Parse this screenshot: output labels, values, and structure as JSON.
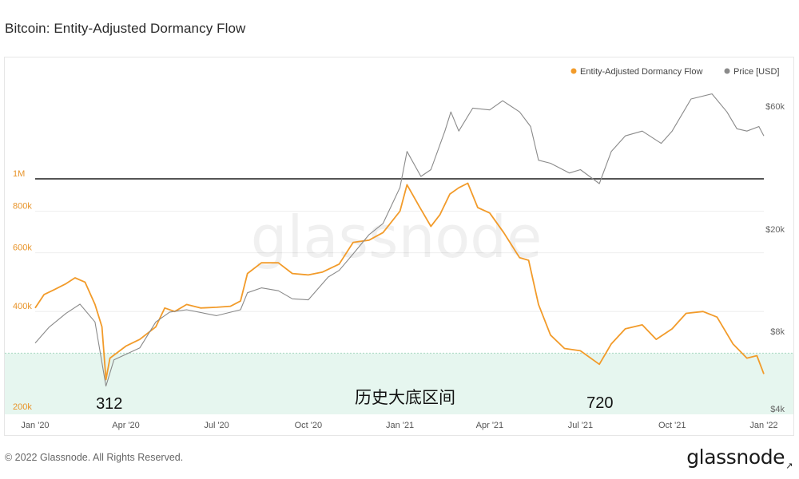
{
  "header": {
    "title": "Bitcoin: Entity-Adjusted Dormancy Flow"
  },
  "footer": {
    "copyright": "© 2022 Glassnode. All Rights Reserved.",
    "logo": "glassnode",
    "logo_arrow": "↗"
  },
  "watermark": "glassnode",
  "colors": {
    "dormancy": "#f29b2a",
    "price": "#8a8a8a",
    "threshold_line": "#555555",
    "band_fill": "#e6f6ef",
    "band_border": "#a8d8c0",
    "grid": "#eeeeee",
    "left_axis_text": "#e8942a",
    "right_axis_text": "#666666"
  },
  "chart_data": {
    "type": "line",
    "title": "Bitcoin: Entity-Adjusted Dormancy Flow",
    "legend": {
      "placement": "top-right",
      "items": [
        "Entity-Adjusted Dormancy Flow",
        "Price [USD]"
      ]
    },
    "x_axis": {
      "ticks": [
        "Jan '20",
        "Apr '20",
        "Jul '20",
        "Oct '20",
        "Jan '21",
        "Apr '21",
        "Jul '21",
        "Oct '21",
        "Jan '22"
      ],
      "range": [
        "2020-01-01",
        "2022-01-01"
      ]
    },
    "y_left": {
      "scale": "log",
      "ticks": [
        "200k",
        "400k",
        "600k",
        "800k",
        "1M"
      ],
      "tick_values": [
        200000,
        400000,
        600000,
        800000,
        1000000
      ]
    },
    "y_right": {
      "scale": "log",
      "ticks": [
        "$4k",
        "$8k",
        "$20k",
        "$60k"
      ],
      "tick_values": [
        4000,
        8000,
        20000,
        60000
      ]
    },
    "threshold": {
      "value": 1000000,
      "label": "1M"
    },
    "band": {
      "range": [
        200000,
        300000
      ],
      "label": "历史大底区间"
    },
    "annotations": [
      {
        "text": "312",
        "date": "2020-03-14"
      },
      {
        "text": "720",
        "date": "2021-07-20"
      },
      {
        "text": "历史大底区间",
        "date": "2021-01-20"
      }
    ],
    "series": [
      {
        "name": "Entity-Adjusted Dormancy Flow",
        "axis": "left",
        "points": [
          [
            "2020-01-01",
            410000
          ],
          [
            "2020-01-10",
            450000
          ],
          [
            "2020-01-20",
            465000
          ],
          [
            "2020-02-01",
            485000
          ],
          [
            "2020-02-10",
            505000
          ],
          [
            "2020-02-20",
            490000
          ],
          [
            "2020-03-01",
            420000
          ],
          [
            "2020-03-08",
            360000
          ],
          [
            "2020-03-12",
            250000
          ],
          [
            "2020-03-16",
            290000
          ],
          [
            "2020-04-01",
            315000
          ],
          [
            "2020-04-15",
            330000
          ],
          [
            "2020-05-01",
            360000
          ],
          [
            "2020-05-10",
            410000
          ],
          [
            "2020-05-20",
            400000
          ],
          [
            "2020-06-01",
            420000
          ],
          [
            "2020-06-15",
            410000
          ],
          [
            "2020-07-01",
            412000
          ],
          [
            "2020-07-15",
            415000
          ],
          [
            "2020-07-25",
            430000
          ],
          [
            "2020-08-01",
            520000
          ],
          [
            "2020-08-15",
            560000
          ],
          [
            "2020-09-01",
            560000
          ],
          [
            "2020-09-15",
            520000
          ],
          [
            "2020-10-01",
            515000
          ],
          [
            "2020-10-15",
            525000
          ],
          [
            "2020-11-01",
            555000
          ],
          [
            "2020-11-15",
            645000
          ],
          [
            "2020-12-01",
            655000
          ],
          [
            "2020-12-15",
            690000
          ],
          [
            "2021-01-01",
            800000
          ],
          [
            "2021-01-08",
            960000
          ],
          [
            "2021-01-20",
            830000
          ],
          [
            "2021-02-01",
            720000
          ],
          [
            "2021-02-10",
            780000
          ],
          [
            "2021-02-20",
            900000
          ],
          [
            "2021-03-01",
            940000
          ],
          [
            "2021-03-10",
            970000
          ],
          [
            "2021-03-20",
            820000
          ],
          [
            "2021-04-01",
            790000
          ],
          [
            "2021-04-15",
            690000
          ],
          [
            "2021-05-01",
            580000
          ],
          [
            "2021-05-10",
            570000
          ],
          [
            "2021-05-20",
            420000
          ],
          [
            "2021-06-01",
            340000
          ],
          [
            "2021-06-15",
            310000
          ],
          [
            "2021-07-01",
            305000
          ],
          [
            "2021-07-20",
            278000
          ],
          [
            "2021-08-01",
            320000
          ],
          [
            "2021-08-15",
            355000
          ],
          [
            "2021-09-01",
            365000
          ],
          [
            "2021-09-15",
            330000
          ],
          [
            "2021-10-01",
            355000
          ],
          [
            "2021-10-15",
            395000
          ],
          [
            "2021-11-01",
            400000
          ],
          [
            "2021-11-15",
            385000
          ],
          [
            "2021-12-01",
            320000
          ],
          [
            "2021-12-15",
            290000
          ],
          [
            "2021-12-25",
            295000
          ],
          [
            "2022-01-01",
            260000
          ]
        ]
      },
      {
        "name": "Price [USD]",
        "axis": "right",
        "points": [
          [
            "2020-01-01",
            7200
          ],
          [
            "2020-01-15",
            8300
          ],
          [
            "2020-02-01",
            9400
          ],
          [
            "2020-02-15",
            10200
          ],
          [
            "2020-03-01",
            8700
          ],
          [
            "2020-03-12",
            4900
          ],
          [
            "2020-03-20",
            6200
          ],
          [
            "2020-04-15",
            6900
          ],
          [
            "2020-05-01",
            8700
          ],
          [
            "2020-05-15",
            9500
          ],
          [
            "2020-06-01",
            9700
          ],
          [
            "2020-07-01",
            9200
          ],
          [
            "2020-07-25",
            9700
          ],
          [
            "2020-08-01",
            11300
          ],
          [
            "2020-08-15",
            11800
          ],
          [
            "2020-09-01",
            11500
          ],
          [
            "2020-09-15",
            10700
          ],
          [
            "2020-10-01",
            10600
          ],
          [
            "2020-10-21",
            13000
          ],
          [
            "2020-11-01",
            13800
          ],
          [
            "2020-11-15",
            16000
          ],
          [
            "2020-12-01",
            19000
          ],
          [
            "2020-12-15",
            21000
          ],
          [
            "2021-01-01",
            29000
          ],
          [
            "2021-01-08",
            40000
          ],
          [
            "2021-01-22",
            32000
          ],
          [
            "2021-02-01",
            34000
          ],
          [
            "2021-02-15",
            48000
          ],
          [
            "2021-02-21",
            57000
          ],
          [
            "2021-03-01",
            48000
          ],
          [
            "2021-03-15",
            59000
          ],
          [
            "2021-04-01",
            58000
          ],
          [
            "2021-04-14",
            63000
          ],
          [
            "2021-05-01",
            57000
          ],
          [
            "2021-05-12",
            50000
          ],
          [
            "2021-05-20",
            37000
          ],
          [
            "2021-06-01",
            36000
          ],
          [
            "2021-06-20",
            33000
          ],
          [
            "2021-07-01",
            34000
          ],
          [
            "2021-07-20",
            30000
          ],
          [
            "2021-08-01",
            40000
          ],
          [
            "2021-08-15",
            46000
          ],
          [
            "2021-09-01",
            48000
          ],
          [
            "2021-09-20",
            43000
          ],
          [
            "2021-10-01",
            48000
          ],
          [
            "2021-10-20",
            64000
          ],
          [
            "2021-11-10",
            67000
          ],
          [
            "2021-11-25",
            57000
          ],
          [
            "2021-12-05",
            49000
          ],
          [
            "2021-12-15",
            48000
          ],
          [
            "2021-12-27",
            50000
          ],
          [
            "2022-01-01",
            46000
          ]
        ]
      }
    ]
  }
}
